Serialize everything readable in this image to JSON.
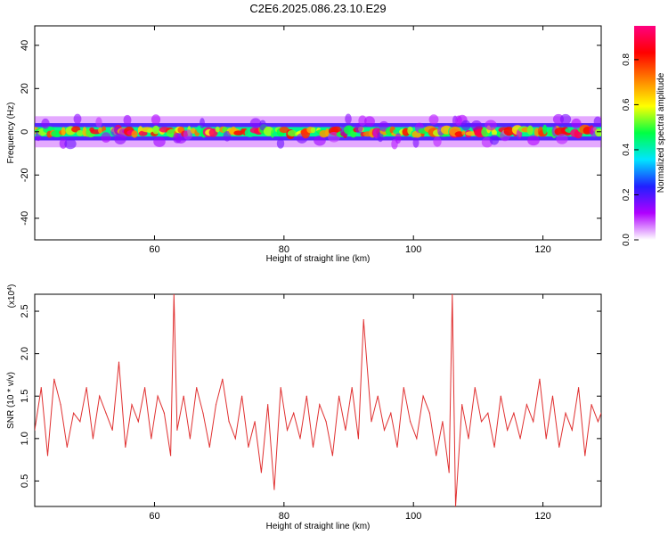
{
  "figure": {
    "title": "C2E6.2025.086.23.10.E29"
  },
  "chart_data": [
    {
      "type": "heatmap",
      "title": "C2E6.2025.086.23.10.E29",
      "xlabel": "Height of straight line (km)",
      "ylabel": "Frequency (Hz)",
      "xlim": [
        41.5,
        129
      ],
      "ylim": [
        -50,
        49
      ],
      "x_ticks": [
        60,
        80,
        100,
        120
      ],
      "y_ticks": [
        40,
        20,
        0,
        -20,
        -40
      ],
      "band_center_hz": 0,
      "band_halfwidth_hz": 4,
      "colorbar": {
        "label": "Normalized spectral amplitude",
        "range": [
          0.0,
          0.95
        ],
        "ticks": [
          0.0,
          0.2,
          0.4,
          0.6,
          0.8
        ],
        "colormap": [
          "#ffffff",
          "#b000ff",
          "#2020ff",
          "#00e5ff",
          "#00ff44",
          "#ffff00",
          "#ff8000",
          "#ff0000",
          "#ff0080"
        ]
      }
    },
    {
      "type": "line",
      "xlabel": "Height of straight line (km)",
      "ylabel": "SNR (10 * v/v)",
      "y_multiplier": "(x10^4)",
      "xlim": [
        41.5,
        129
      ],
      "ylim": [
        0.2,
        2.7
      ],
      "x_ticks": [
        60,
        80,
        100,
        120
      ],
      "y_ticks": [
        0.5,
        1.0,
        1.5,
        2.0,
        2.5
      ],
      "series": [
        {
          "color": "#e03030",
          "x": [
            41.5,
            42.5,
            43.5,
            44.5,
            45.5,
            46.5,
            47.5,
            48.5,
            49.5,
            50.5,
            51.5,
            52.5,
            53.5,
            54.5,
            55.5,
            56.5,
            57.5,
            58.5,
            59.5,
            60.5,
            61.5,
            62.5,
            63,
            63.5,
            64.5,
            65.5,
            66.5,
            67.5,
            68.5,
            69.5,
            70.5,
            71.5,
            72.5,
            73.5,
            74.5,
            75.5,
            76.5,
            77.5,
            78.5,
            79.5,
            80.5,
            81.5,
            82.5,
            83.5,
            84.5,
            85.5,
            86.5,
            87.5,
            88.5,
            89.5,
            90.5,
            91.5,
            92.3,
            93.5,
            94.5,
            95.5,
            96.5,
            97.5,
            98.5,
            99.5,
            100.5,
            101.5,
            102.5,
            103.5,
            104.5,
            105.5,
            106,
            106.5,
            107.5,
            108.5,
            109.5,
            110.5,
            111.5,
            112.5,
            113.5,
            114.5,
            115.5,
            116.5,
            117.5,
            118.5,
            119.5,
            120.5,
            121.5,
            122.5,
            123.5,
            124.5,
            125.5,
            126.5,
            127.5,
            128.5,
            129
          ],
          "values": [
            1.1,
            1.6,
            0.8,
            1.7,
            1.4,
            0.9,
            1.3,
            1.2,
            1.6,
            1.0,
            1.5,
            1.3,
            1.1,
            1.9,
            0.9,
            1.4,
            1.2,
            1.6,
            1.0,
            1.5,
            1.3,
            0.8,
            2.7,
            1.1,
            1.5,
            1.0,
            1.6,
            1.3,
            0.9,
            1.4,
            1.7,
            1.2,
            1.0,
            1.5,
            0.9,
            1.2,
            0.6,
            1.4,
            0.4,
            1.6,
            1.1,
            1.3,
            1.0,
            1.5,
            0.9,
            1.4,
            1.2,
            0.8,
            1.5,
            1.1,
            1.6,
            1.0,
            2.4,
            1.2,
            1.5,
            1.1,
            1.3,
            0.9,
            1.6,
            1.2,
            1.0,
            1.5,
            1.3,
            0.8,
            1.2,
            0.6,
            2.7,
            0.2,
            1.4,
            1.0,
            1.6,
            1.2,
            1.3,
            0.9,
            1.5,
            1.1,
            1.3,
            1.0,
            1.4,
            1.2,
            1.7,
            1.0,
            1.5,
            0.9,
            1.3,
            1.1,
            1.6,
            0.8,
            1.4,
            1.2,
            1.3
          ]
        }
      ]
    }
  ]
}
